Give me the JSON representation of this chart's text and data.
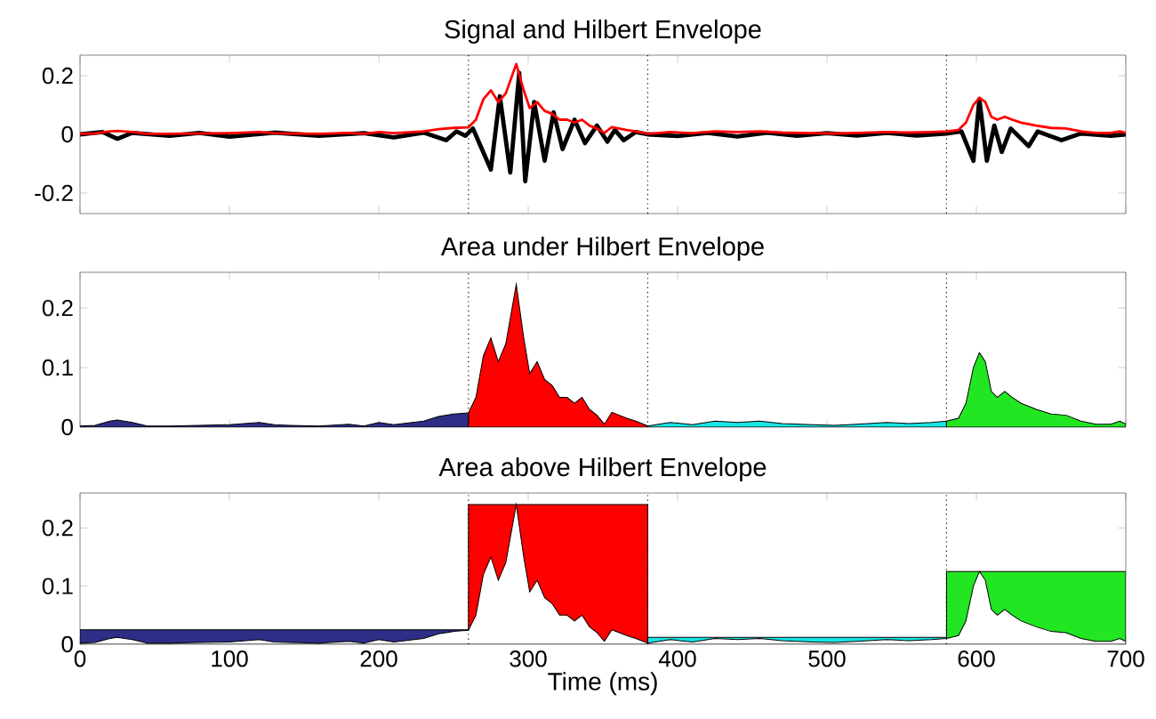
{
  "chart_data": [
    {
      "type": "line",
      "title": "Signal and Hilbert Envelope",
      "xlim": [
        0,
        700
      ],
      "ylim": [
        -0.27,
        0.27
      ],
      "xticks": [
        0,
        100,
        200,
        300,
        400,
        500,
        600,
        700
      ],
      "yticks": [
        -0.2,
        0,
        0.2
      ],
      "tick_labels": "y",
      "ref_lines": [
        {
          "axis": "x",
          "value": 260,
          "line_style": "dotted"
        },
        {
          "axis": "x",
          "value": 380,
          "line_style": "dotted"
        },
        {
          "axis": "x",
          "value": 580,
          "line_style": "dotted"
        }
      ],
      "series": [
        {
          "color": "#000000",
          "x": [
            0,
            15,
            25,
            35,
            60,
            80,
            100,
            130,
            160,
            190,
            210,
            230,
            245,
            252,
            258,
            263,
            269,
            275,
            281,
            288,
            294,
            298,
            304,
            311,
            317,
            323,
            331,
            338,
            346,
            353,
            358,
            364,
            372,
            380,
            400,
            420,
            440,
            460,
            480,
            500,
            520,
            540,
            560,
            580,
            590,
            598,
            602,
            607,
            612,
            617,
            623,
            635,
            641,
            657,
            670,
            690,
            700
          ],
          "values": [
            0,
            0.008,
            -0.015,
            0.005,
            -0.005,
            0.005,
            -0.008,
            0.006,
            -0.005,
            0.004,
            -0.01,
            0.006,
            -0.02,
            0.01,
            -0.005,
            0.02,
            -0.05,
            -0.12,
            0.13,
            -0.13,
            0.21,
            -0.16,
            0.11,
            -0.09,
            0.075,
            -0.05,
            0.05,
            -0.03,
            0.03,
            -0.025,
            0.015,
            -0.02,
            0.008,
            0,
            -0.006,
            0.005,
            -0.007,
            0.006,
            -0.005,
            0.004,
            -0.004,
            0.005,
            -0.004,
            0.003,
            0.01,
            -0.09,
            0.12,
            -0.09,
            0.03,
            -0.06,
            0.02,
            -0.04,
            0.01,
            -0.02,
            0.003,
            -0.005,
            0
          ]
        },
        {
          "color": "#ff0000",
          "x": [
            0,
            10,
            20,
            25,
            35,
            45,
            60,
            80,
            100,
            120,
            130,
            140,
            160,
            180,
            190,
            200,
            210,
            230,
            240,
            250,
            260,
            265,
            270,
            275,
            280,
            285,
            292,
            297,
            301,
            306,
            311,
            316,
            321,
            326,
            331,
            336,
            341,
            346,
            351,
            356,
            361,
            366,
            372,
            380,
            395,
            410,
            425,
            440,
            455,
            470,
            490,
            505,
            520,
            540,
            555,
            570,
            580,
            588,
            593,
            598,
            602,
            606,
            610,
            614,
            619,
            624,
            630,
            640,
            650,
            660,
            670,
            680,
            690,
            696,
            700
          ],
          "values": [
            0.002,
            0.003,
            0.01,
            0.012,
            0.008,
            0.002,
            0.002,
            0.003,
            0.004,
            0.008,
            0.004,
            0.003,
            0.002,
            0.005,
            0.002,
            0.008,
            0.004,
            0.01,
            0.018,
            0.022,
            0.024,
            0.05,
            0.12,
            0.15,
            0.11,
            0.14,
            0.24,
            0.15,
            0.09,
            0.11,
            0.08,
            0.07,
            0.05,
            0.05,
            0.04,
            0.05,
            0.03,
            0.02,
            0.005,
            0.025,
            0.02,
            0.015,
            0.01,
            0.002,
            0.008,
            0.004,
            0.01,
            0.008,
            0.01,
            0.006,
            0.004,
            0.003,
            0.005,
            0.008,
            0.006,
            0.008,
            0.01,
            0.015,
            0.04,
            0.1,
            0.125,
            0.11,
            0.06,
            0.05,
            0.06,
            0.05,
            0.04,
            0.03,
            0.022,
            0.02,
            0.01,
            0.005,
            0.005,
            0.01,
            0.005
          ]
        }
      ]
    },
    {
      "type": "area",
      "title": "Area under Hilbert Envelope",
      "xlim": [
        0,
        700
      ],
      "ylim": [
        0,
        0.26
      ],
      "xticks": [
        0,
        100,
        200,
        300,
        400,
        500,
        600,
        700
      ],
      "yticks": [
        0,
        0.1,
        0.2
      ],
      "tick_labels": "y",
      "ref_lines": [
        {
          "axis": "x",
          "value": 260,
          "line_style": "dotted"
        },
        {
          "axis": "x",
          "value": 380,
          "line_style": "dotted"
        },
        {
          "axis": "x",
          "value": 580,
          "line_style": "dotted"
        }
      ],
      "series": [
        {
          "color": "#2e2e87",
          "x": [
            0,
            10,
            20,
            25,
            35,
            45,
            60,
            80,
            100,
            120,
            130,
            140,
            160,
            180,
            190,
            200,
            210,
            230,
            240,
            250,
            260
          ],
          "values": [
            0.002,
            0.003,
            0.01,
            0.012,
            0.008,
            0.002,
            0.002,
            0.003,
            0.004,
            0.008,
            0.004,
            0.003,
            0.002,
            0.005,
            0.002,
            0.008,
            0.004,
            0.01,
            0.018,
            0.022,
            0.024
          ]
        },
        {
          "color": "#ff0000",
          "x": [
            260,
            265,
            270,
            275,
            280,
            285,
            292,
            297,
            301,
            306,
            311,
            316,
            321,
            326,
            331,
            336,
            341,
            346,
            351,
            356,
            361,
            366,
            372,
            380
          ],
          "values": [
            0.024,
            0.05,
            0.12,
            0.15,
            0.11,
            0.14,
            0.24,
            0.15,
            0.09,
            0.11,
            0.08,
            0.07,
            0.05,
            0.05,
            0.04,
            0.05,
            0.03,
            0.02,
            0.005,
            0.025,
            0.02,
            0.015,
            0.01,
            0.002
          ]
        },
        {
          "color": "#19e5e5",
          "x": [
            380,
            395,
            410,
            425,
            440,
            455,
            470,
            490,
            505,
            520,
            540,
            555,
            570,
            580
          ],
          "values": [
            0.002,
            0.008,
            0.004,
            0.01,
            0.008,
            0.01,
            0.006,
            0.004,
            0.003,
            0.005,
            0.008,
            0.006,
            0.008,
            0.01
          ]
        },
        {
          "color": "#22e622",
          "x": [
            580,
            588,
            593,
            598,
            602,
            606,
            610,
            614,
            619,
            624,
            630,
            640,
            650,
            660,
            670,
            680,
            690,
            696,
            700
          ],
          "values": [
            0.01,
            0.015,
            0.04,
            0.1,
            0.125,
            0.11,
            0.06,
            0.05,
            0.06,
            0.05,
            0.04,
            0.03,
            0.022,
            0.02,
            0.01,
            0.005,
            0.005,
            0.01,
            0.005
          ]
        }
      ]
    },
    {
      "type": "area",
      "title": "Area above Hilbert Envelope",
      "xlabel": "Time (ms)",
      "xlim": [
        0,
        700
      ],
      "ylim": [
        0,
        0.26
      ],
      "xticks": [
        0,
        100,
        200,
        300,
        400,
        500,
        600,
        700
      ],
      "yticks": [
        0,
        0.1,
        0.2
      ],
      "ref_lines": [
        {
          "axis": "x",
          "value": 260,
          "line_style": "dotted"
        },
        {
          "axis": "x",
          "value": 380,
          "line_style": "dotted"
        },
        {
          "axis": "x",
          "value": 580,
          "line_style": "dotted"
        }
      ],
      "series": [
        {
          "color": "#2e2e87",
          "x": [
            0,
            260
          ],
          "values": [
            0.025,
            0.025
          ]
        },
        {
          "color": "#ff0000",
          "x": [
            260,
            380
          ],
          "values": [
            0.24,
            0.24
          ]
        },
        {
          "color": "#19e5e5",
          "x": [
            380,
            580
          ],
          "values": [
            0.012,
            0.012
          ]
        },
        {
          "color": "#22e622",
          "x": [
            580,
            700
          ],
          "values": [
            0.125,
            0.125
          ]
        },
        {
          "color": "#ffffff",
          "x": [
            0,
            10,
            20,
            25,
            35,
            45,
            60,
            80,
            100,
            120,
            130,
            140,
            160,
            180,
            190,
            200,
            210,
            230,
            240,
            250,
            260,
            265,
            270,
            275,
            280,
            285,
            292,
            297,
            301,
            306,
            311,
            316,
            321,
            326,
            331,
            336,
            341,
            346,
            351,
            356,
            361,
            366,
            372,
            380,
            395,
            410,
            425,
            440,
            455,
            470,
            490,
            505,
            520,
            540,
            555,
            570,
            580,
            588,
            593,
            598,
            602,
            606,
            610,
            614,
            619,
            624,
            630,
            640,
            650,
            660,
            670,
            680,
            690,
            696,
            700
          ],
          "values": [
            0.002,
            0.003,
            0.01,
            0.012,
            0.008,
            0.002,
            0.002,
            0.003,
            0.004,
            0.008,
            0.004,
            0.003,
            0.002,
            0.005,
            0.002,
            0.008,
            0.004,
            0.01,
            0.018,
            0.022,
            0.024,
            0.05,
            0.12,
            0.15,
            0.11,
            0.14,
            0.24,
            0.15,
            0.09,
            0.11,
            0.08,
            0.07,
            0.05,
            0.05,
            0.04,
            0.05,
            0.03,
            0.02,
            0.005,
            0.025,
            0.02,
            0.015,
            0.01,
            0.002,
            0.008,
            0.004,
            0.01,
            0.008,
            0.01,
            0.006,
            0.004,
            0.003,
            0.005,
            0.008,
            0.006,
            0.008,
            0.01,
            0.015,
            0.04,
            0.1,
            0.125,
            0.11,
            0.06,
            0.05,
            0.06,
            0.05,
            0.04,
            0.03,
            0.022,
            0.02,
            0.01,
            0.005,
            0.005,
            0.01,
            0.005
          ]
        }
      ]
    }
  ]
}
